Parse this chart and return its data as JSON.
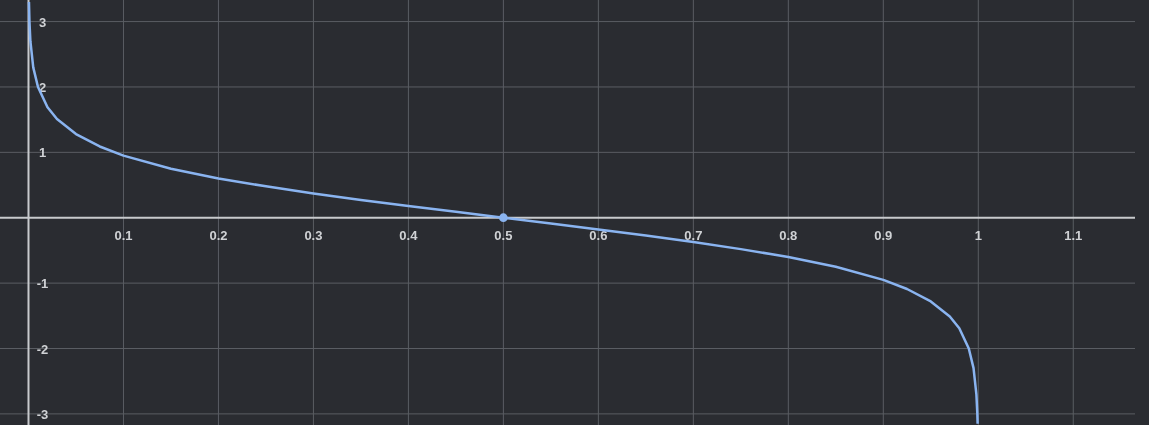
{
  "chart_data": {
    "type": "line",
    "xlim": [
      -0.03,
      1.165
    ],
    "ylim": [
      -3.17,
      3.33
    ],
    "xticks": [
      0.1,
      0.2,
      0.3,
      0.4,
      0.5,
      0.6,
      0.7,
      0.8,
      0.9,
      1,
      1.1
    ],
    "yticks": [
      -3,
      -2,
      -1,
      1,
      2,
      3
    ],
    "grid": true,
    "series": [
      {
        "color": "#8ab4f0",
        "marker": "none",
        "line_style": "solid",
        "x": [
          0.0005,
          0.001,
          0.002,
          0.005,
          0.01,
          0.02,
          0.03,
          0.05,
          0.075,
          0.1,
          0.15,
          0.2,
          0.25,
          0.3,
          0.35,
          0.4,
          0.45,
          0.5,
          0.55,
          0.6,
          0.65,
          0.7,
          0.75,
          0.8,
          0.85,
          0.9,
          0.925,
          0.95,
          0.97,
          0.98,
          0.99,
          0.995,
          0.998,
          0.999,
          0.9993
        ],
        "values": [
          3.3,
          3.0,
          2.7,
          2.3,
          2.0,
          1.69,
          1.51,
          1.28,
          1.09,
          0.95,
          0.75,
          0.6,
          0.48,
          0.37,
          0.27,
          0.18,
          0.09,
          0,
          -0.09,
          -0.18,
          -0.27,
          -0.37,
          -0.48,
          -0.6,
          -0.75,
          -0.95,
          -1.09,
          -1.28,
          -1.51,
          -1.69,
          -2.0,
          -2.3,
          -2.7,
          -3.0,
          -3.15
        ]
      },
      {
        "type": "scatter",
        "color": "#8ab4f0",
        "marker": "circle",
        "x": [
          0.5
        ],
        "values": [
          0
        ]
      }
    ]
  }
}
